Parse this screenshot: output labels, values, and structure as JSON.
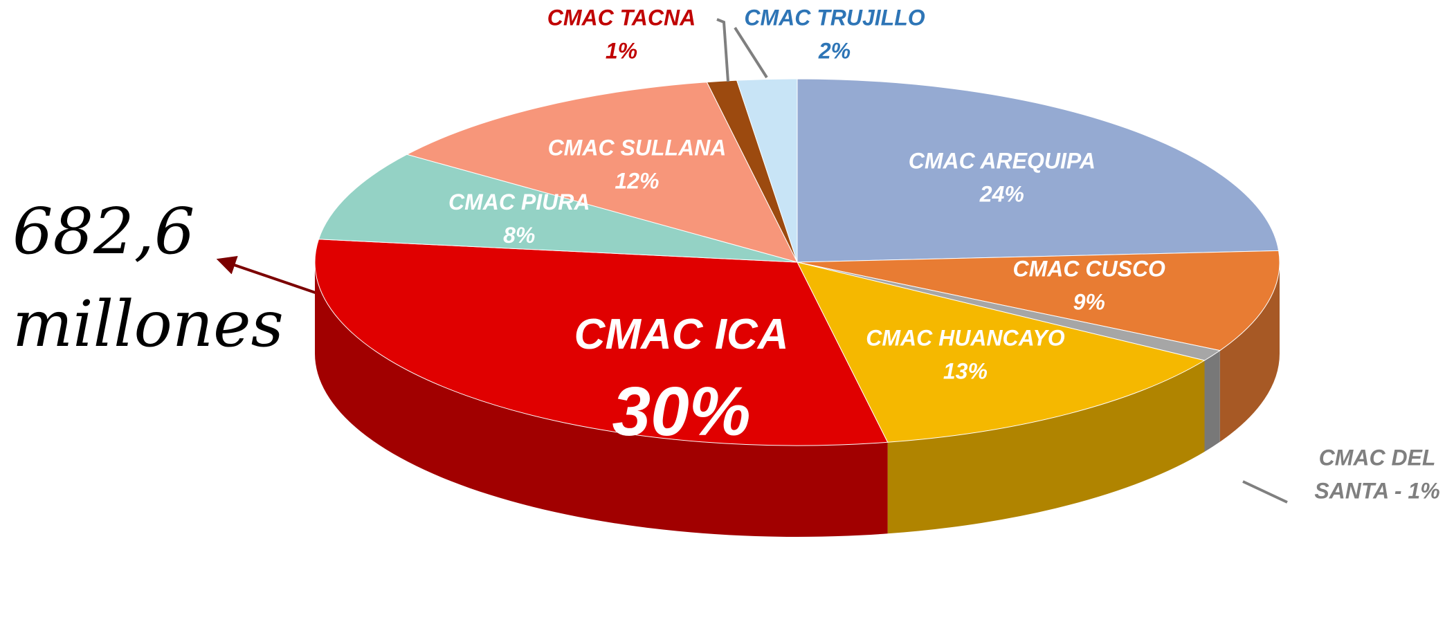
{
  "chart_data": {
    "type": "pie3d",
    "categories": [
      "CMAC AREQUIPA",
      "CMAC CUSCO",
      "CMAC DEL SANTA",
      "CMAC HUANCAYO",
      "CMAC ICA",
      "CMAC PIURA",
      "CMAC SULLANA",
      "CMAC TACNA",
      "CMAC TRUJILLO"
    ],
    "values": [
      24,
      9,
      1,
      13,
      30,
      8,
      12,
      1,
      2
    ],
    "value_labels": [
      "24%",
      "9%",
      "1%",
      "13%",
      "30%",
      "8%",
      "12%",
      "1%",
      "2%"
    ],
    "label_separator": "-",
    "colors": [
      "#95aad2",
      "#e87c33",
      "#a6a6a6",
      "#f5b800",
      "#e00000",
      "#94d2c5",
      "#f7967a",
      "#9c4a0f",
      "#c8e4f6"
    ],
    "annotation": "682,6 millones"
  }
}
